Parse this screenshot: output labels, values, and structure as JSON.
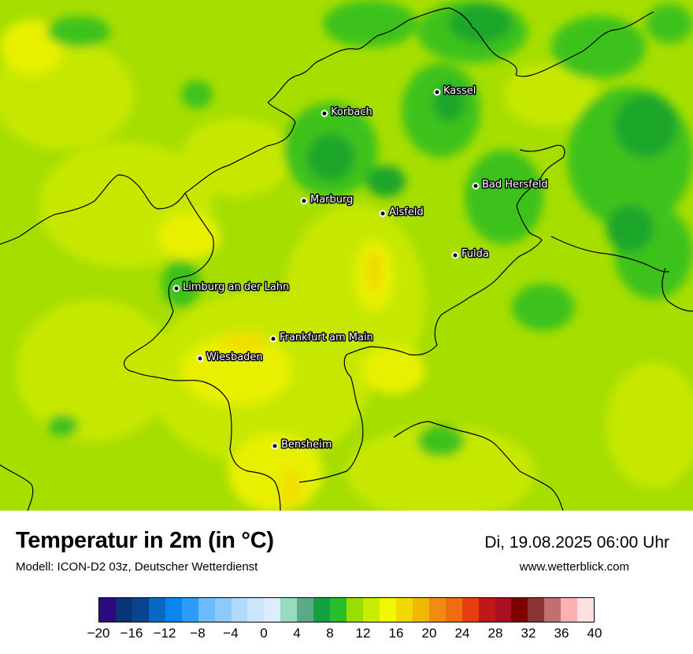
{
  "map": {
    "cities": [
      {
        "name": "Kassel"
      },
      {
        "name": "Korbach"
      },
      {
        "name": "Bad Hersfeld"
      },
      {
        "name": "Marburg"
      },
      {
        "name": "Alsfeld"
      },
      {
        "name": "Fulda"
      },
      {
        "name": "Limburg an der Lahn"
      },
      {
        "name": "Frankfurt am Main"
      },
      {
        "name": "Wiesbaden"
      },
      {
        "name": "Bensheim"
      }
    ],
    "colors": {
      "base": "#a6de00",
      "light": "#c6e800",
      "yellow": "#e8f000",
      "warm": "#f0e000",
      "green": "#3cc21c",
      "dark_green": "#1aa62c",
      "border": "#000000"
    }
  },
  "footer": {
    "title": "Temperatur in 2m (in °C)",
    "subtitle": "Modell: ICON-D2 03z, Deutscher Wetterdienst",
    "datetime": "Di, 19.08.2025 06:00 Uhr",
    "website": "www.wetterblick.com"
  },
  "legend": {
    "colors": [
      "#2e0a80",
      "#0a3478",
      "#0a4490",
      "#0a68c0",
      "#0a86f0",
      "#2c9cf8",
      "#6cbcfc",
      "#8ccafc",
      "#b0dafc",
      "#cce6fc",
      "#dcecfc",
      "#98dcc0",
      "#5aaa88",
      "#14a040",
      "#28c028",
      "#98dc00",
      "#c8ec00",
      "#f0f800",
      "#f0d800",
      "#f0b800",
      "#f08c10",
      "#f06c10",
      "#e83c10",
      "#c01818",
      "#a81020",
      "#800000",
      "#8c3434",
      "#c07070",
      "#fcb0b0",
      "#fce0e0"
    ],
    "tick_labels": [
      "−20",
      "−16",
      "−12",
      "−8",
      "−4",
      "0",
      "4",
      "8",
      "12",
      "16",
      "20",
      "24",
      "28",
      "32",
      "36",
      "40"
    ]
  }
}
